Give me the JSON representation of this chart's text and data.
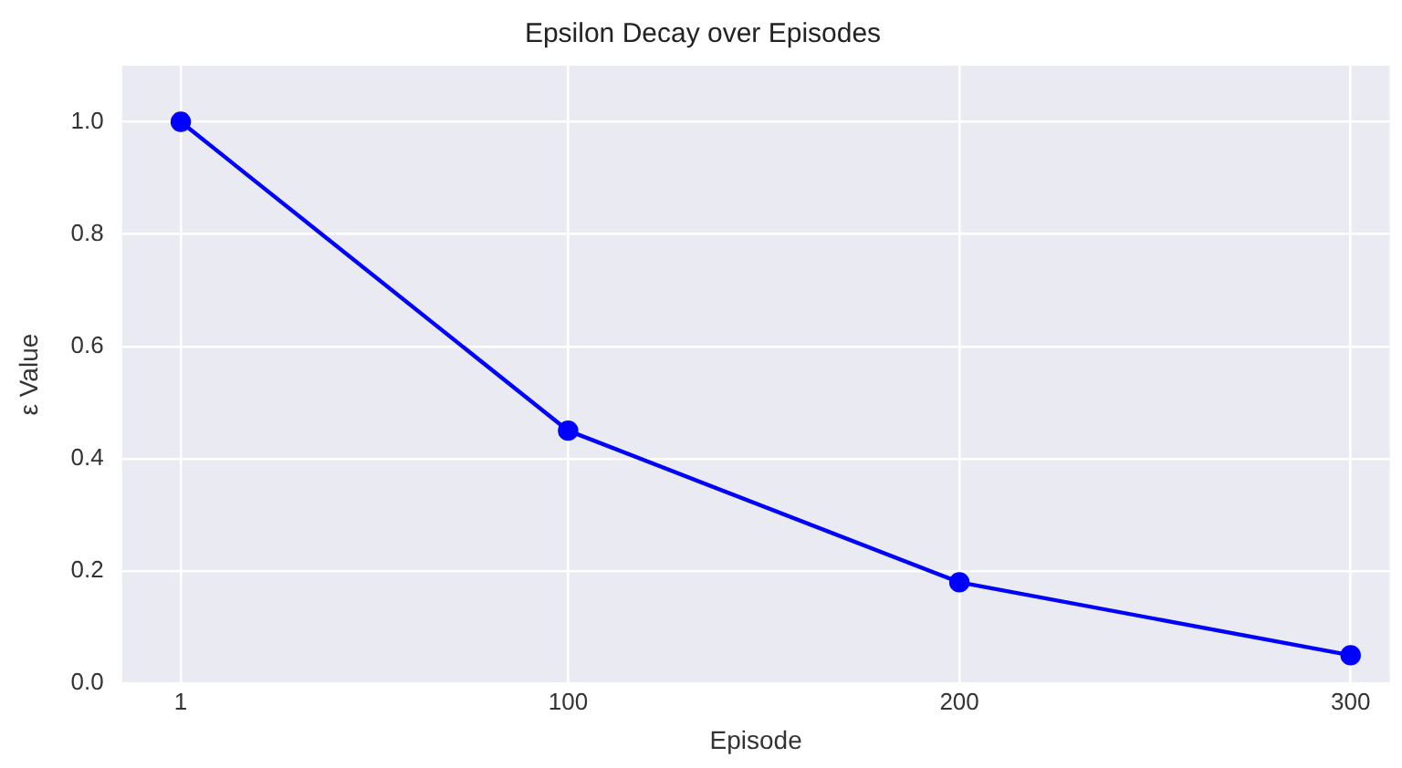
{
  "chart_data": {
    "type": "line",
    "title": "Epsilon Decay over Episodes",
    "xlabel": "Episode",
    "ylabel": "ε Value",
    "x": [
      1,
      100,
      200,
      300
    ],
    "series": [
      {
        "color": "#0000ff",
        "values": [
          1.0,
          0.45,
          0.18,
          0.05
        ]
      }
    ],
    "xlim": [
      -14,
      310
    ],
    "xticks": [
      1,
      100,
      200,
      300
    ],
    "ylim": [
      0,
      1.1
    ],
    "yticks": [
      {
        "value": 0,
        "label": "0.0"
      },
      0.2,
      0.4,
      0.6,
      0.8,
      {
        "value": 1,
        "label": "1.0"
      }
    ],
    "grid": true,
    "legend": false,
    "marker": "circle",
    "line_style": "solid"
  }
}
